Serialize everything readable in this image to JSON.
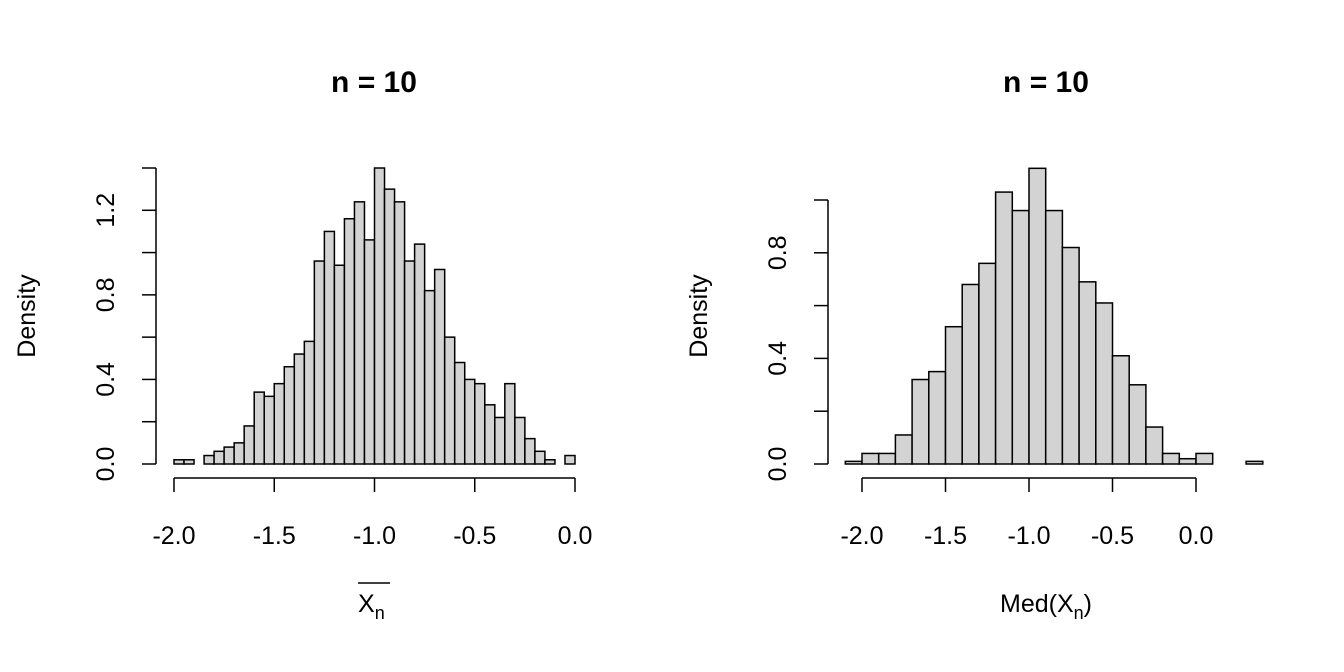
{
  "colors": {
    "bar_fill": "#d3d3d3",
    "bar_stroke": "#000000",
    "background": "#ffffff"
  },
  "chart_data": [
    {
      "type": "bar",
      "title": "n =  10",
      "ylabel": "Density",
      "xlabel": {
        "text": "X",
        "subscript": "n",
        "overline": true
      },
      "bin_width": 0.05,
      "bins_start": -2.0,
      "density": [
        0.02,
        0.02,
        0.0,
        0.04,
        0.06,
        0.08,
        0.1,
        0.18,
        0.34,
        0.32,
        0.38,
        0.46,
        0.52,
        0.58,
        0.96,
        1.1,
        0.94,
        1.16,
        1.24,
        1.06,
        1.4,
        1.3,
        1.24,
        0.96,
        1.04,
        0.82,
        0.92,
        0.6,
        0.48,
        0.4,
        0.38,
        0.28,
        0.22,
        0.38,
        0.22,
        0.12,
        0.06,
        0.02,
        0.0,
        0.04
      ],
      "xlim": [
        -2.0,
        0.0
      ],
      "ylim": [
        0,
        1.4
      ],
      "x_ticks": [
        -2.0,
        -1.5,
        -1.0,
        -0.5,
        0.0
      ],
      "x_tick_labels": [
        "-2.0",
        "-1.5",
        "-1.0",
        "-0.5",
        "0.0"
      ],
      "y_ticks": [
        0.0,
        0.2,
        0.4,
        0.6,
        0.8,
        1.0,
        1.2,
        1.4
      ],
      "y_tick_labels": [
        "0.0",
        "",
        "0.4",
        "",
        "0.8",
        "",
        "1.2",
        ""
      ]
    },
    {
      "type": "bar",
      "title": "n =  10",
      "ylabel": "Density",
      "xlabel": {
        "text": "Med(X",
        "subscript": "n",
        "suffix": ")",
        "overline": false
      },
      "bin_width": 0.1,
      "bins_start": -2.1,
      "density": [
        0.01,
        0.04,
        0.04,
        0.11,
        0.32,
        0.35,
        0.52,
        0.68,
        0.76,
        1.03,
        0.96,
        1.12,
        0.96,
        0.82,
        0.69,
        0.61,
        0.41,
        0.3,
        0.14,
        0.04,
        0.02,
        0.04,
        0.0,
        0.0,
        0.01
      ],
      "xlim": [
        -2.0,
        0.0
      ],
      "ylim": [
        0,
        1.0
      ],
      "x_ticks": [
        -2.0,
        -1.5,
        -1.0,
        -0.5,
        0.0
      ],
      "x_tick_labels": [
        "-2.0",
        "-1.5",
        "-1.0",
        "-0.5",
        "0.0"
      ],
      "y_ticks": [
        0.0,
        0.2,
        0.4,
        0.6,
        0.8,
        1.0
      ],
      "y_tick_labels": [
        "0.0",
        "",
        "0.4",
        "",
        "0.8",
        ""
      ]
    }
  ]
}
